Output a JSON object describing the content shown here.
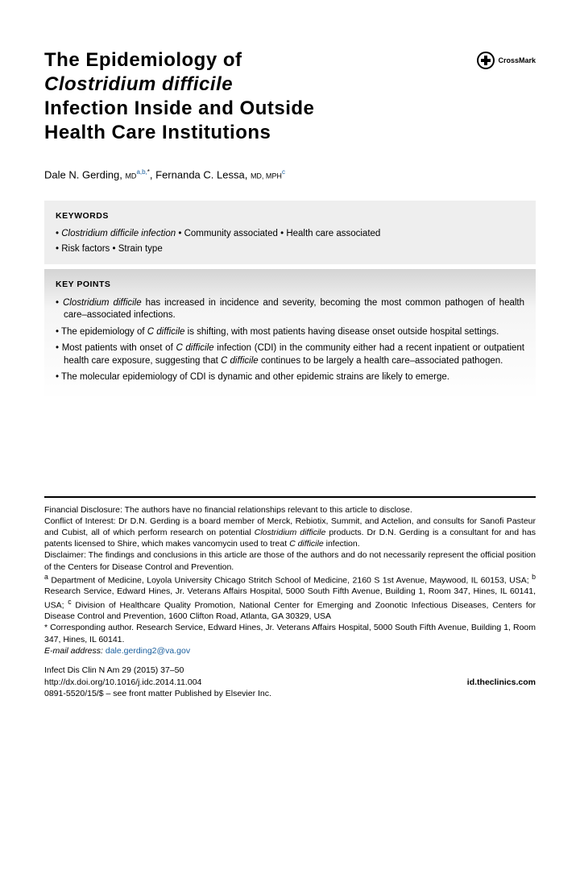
{
  "title": {
    "line1": "The Epidemiology of",
    "line2_italic": "Clostridium difficile",
    "line3": "Infection Inside and Outside",
    "line4": "Health Care Institutions"
  },
  "crossmark_label": "CrossMark",
  "authors": {
    "a1_name": "Dale N. Gerding, ",
    "a1_deg": "MD",
    "a1_aff": "a,b,",
    "a1_star": "*",
    "sep": ", ",
    "a2_name": "Fernanda C. Lessa, ",
    "a2_deg": "MD, MPH",
    "a2_aff": "c"
  },
  "keywords": {
    "heading": "KEYWORDS",
    "items": [
      "Clostridium difficile infection",
      "Community associated",
      "Health care associated",
      "Risk factors",
      "Strain type"
    ]
  },
  "keypoints": {
    "heading": "KEY POINTS",
    "items": [
      "<em>Clostridium difficile</em> has increased in incidence and severity, becoming the most common pathogen of health care–associated infections.",
      "The epidemiology of <em>C difficile</em> is shifting, with most patients having disease onset outside hospital settings.",
      "Most patients with onset of <em>C difficile</em> infection (CDI) in the community either had a recent inpatient or outpatient health care exposure, suggesting that <em>C difficile</em> continues to be largely a health care–associated pathogen.",
      "The molecular epidemiology of CDI is dynamic and other epidemic strains are likely to emerge."
    ]
  },
  "footer": {
    "disclosure": "Financial Disclosure: The authors have no financial relationships relevant to this article to disclose.",
    "conflict": "Conflict of Interest: Dr D.N. Gerding is a board member of Merck, Rebiotix, Summit, and Actelion, and consults for Sanofi Pasteur and Cubist, all of which perform research on potential <em>Clostridium difficile</em> products. Dr D.N. Gerding is a consultant for and has patents licensed to Shire, which makes vancomycin used to treat <em>C difficile</em> infection.",
    "disclaimer": "Disclaimer: The findings and conclusions in this article are those of the authors and do not necessarily represent the official position of the Centers for Disease Control and Prevention.",
    "affiliations": "<sup>a</sup> Department of Medicine, Loyola University Chicago Stritch School of Medicine, 2160 S 1st Avenue, Maywood, IL 60153, USA; <sup>b</sup> Research Service, Edward Hines, Jr. Veterans Affairs Hospital, 5000 South Fifth Avenue, Building 1, Room 347, Hines, IL 60141, USA; <sup>c</sup> Division of Healthcare Quality Promotion, National Center for Emerging and Zoonotic Infectious Diseases, Centers for Disease Control and Prevention, 1600 Clifton Road, Atlanta, GA 30329, USA",
    "corresponding": "* Corresponding author. Research Service, Edward Hines, Jr. Veterans Affairs Hospital, 5000 South Fifth Avenue, Building 1, Room 347, Hines, IL 60141.",
    "email_label": "E-mail address:",
    "email": "dale.gerding2@va.gov"
  },
  "meta": {
    "citation": "Infect Dis Clin N Am 29 (2015) 37–50",
    "doi": "http://dx.doi.org/10.1016/j.idc.2014.11.004",
    "issn": "0891-5520/15/$ – see front matter Published by Elsevier Inc.",
    "site": "id.theclinics.com"
  }
}
